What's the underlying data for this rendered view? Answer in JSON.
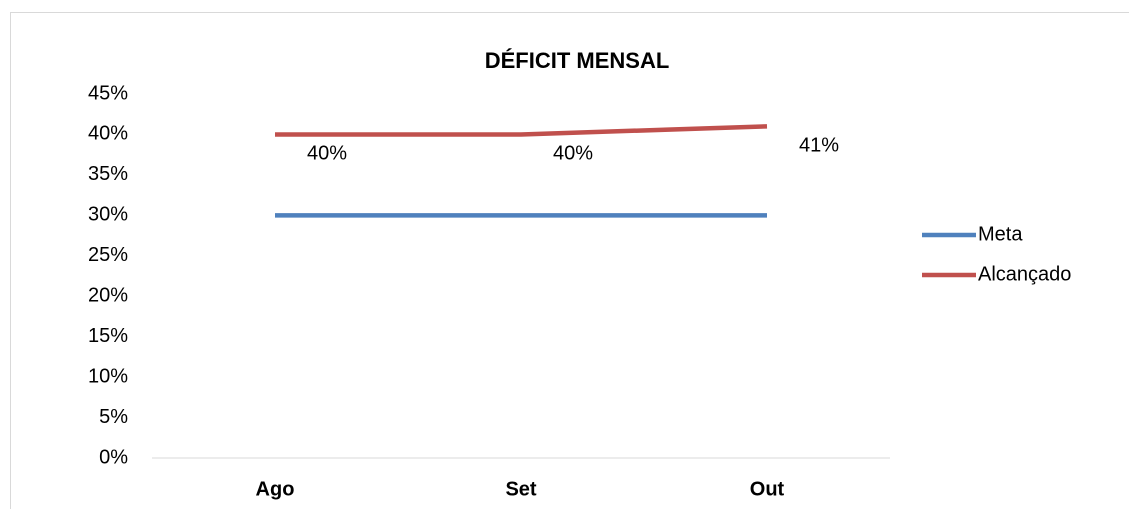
{
  "chart_data": {
    "type": "line",
    "title": "DÉFICIT MENSAL",
    "categories": [
      "Ago",
      "Set",
      "Out"
    ],
    "series": [
      {
        "name": "Meta",
        "color": "#4f81bd",
        "values": [
          30,
          30,
          30
        ]
      },
      {
        "name": "Alcançado",
        "color": "#c0504d",
        "values": [
          40,
          40,
          41
        ],
        "value_labels": [
          "40%",
          "40%",
          "41%"
        ]
      }
    ],
    "ylim": [
      0,
      45
    ],
    "yticks": [
      {
        "value": 0,
        "label": "0%"
      },
      {
        "value": 5,
        "label": "5%"
      },
      {
        "value": 10,
        "label": "10%"
      },
      {
        "value": 15,
        "label": "15%"
      },
      {
        "value": 20,
        "label": "20%"
      },
      {
        "value": 25,
        "label": "25%"
      },
      {
        "value": 30,
        "label": "30%"
      },
      {
        "value": 35,
        "label": "35%"
      },
      {
        "value": 40,
        "label": "40%"
      },
      {
        "value": 45,
        "label": "45%"
      }
    ],
    "grid": false,
    "legend": "right"
  }
}
